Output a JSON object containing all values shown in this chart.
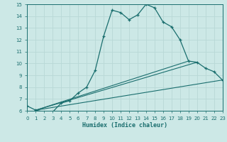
{
  "xlabel": "Humidex (Indice chaleur)",
  "xlim": [
    0,
    23
  ],
  "ylim": [
    6,
    15
  ],
  "yticks": [
    6,
    7,
    8,
    9,
    10,
    11,
    12,
    13,
    14,
    15
  ],
  "xticks": [
    0,
    1,
    2,
    3,
    4,
    5,
    6,
    7,
    8,
    9,
    10,
    11,
    12,
    13,
    14,
    15,
    16,
    17,
    18,
    19,
    20,
    21,
    22,
    23
  ],
  "background_color": "#cce8e6",
  "grid_color": "#b8d8d6",
  "line_color": "#1a6e6e",
  "line1_x": [
    0,
    1,
    2,
    3,
    4,
    5,
    6,
    7,
    8,
    9,
    10,
    11,
    12,
    13,
    14,
    15,
    16,
    17,
    18,
    19,
    20,
    21,
    22,
    23
  ],
  "line1_y": [
    6.4,
    6.05,
    5.9,
    5.9,
    6.65,
    6.85,
    7.5,
    8.0,
    9.4,
    12.3,
    14.5,
    14.3,
    13.7,
    14.1,
    15.0,
    14.7,
    13.5,
    13.1,
    12.0,
    10.2,
    10.1,
    9.6,
    9.3,
    8.6
  ],
  "line2_x": [
    1,
    23
  ],
  "line2_y": [
    6.05,
    8.6
  ],
  "line3_x": [
    1,
    20
  ],
  "line3_y": [
    6.05,
    10.1
  ],
  "line4_x": [
    1,
    19
  ],
  "line4_y": [
    6.05,
    10.2
  ]
}
